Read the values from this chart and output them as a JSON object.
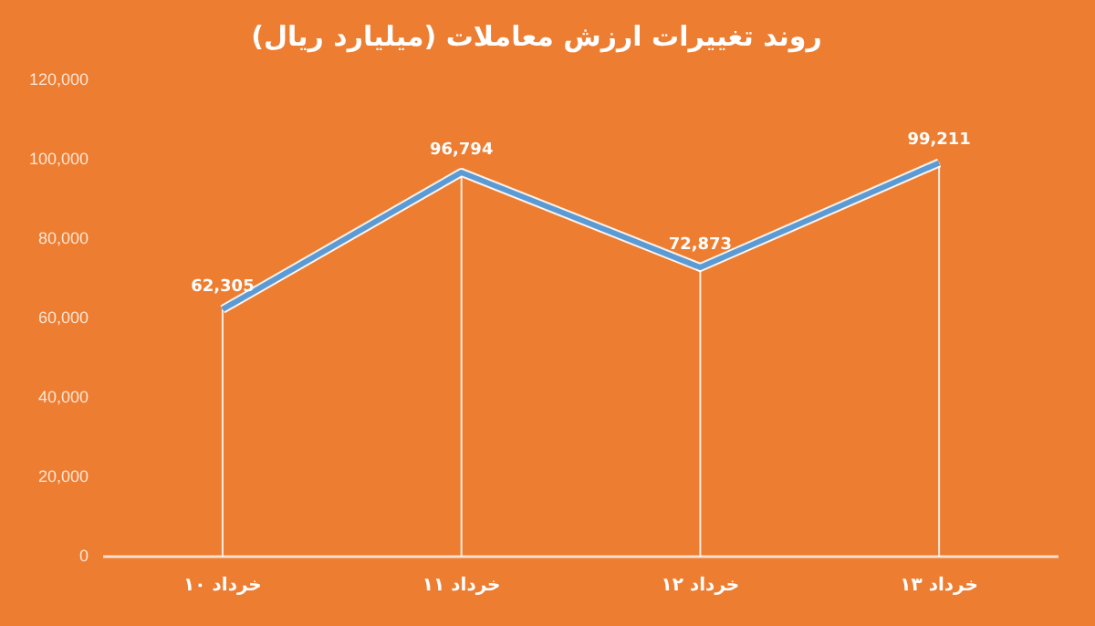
{
  "chart_data": {
    "type": "line",
    "title": "روند تغییرات ارزش معاملات (میلیارد ریال)",
    "categories": [
      "۱۰ خرداد",
      "۱۱ خرداد",
      "۱۲ خرداد",
      "۱۳ خرداد"
    ],
    "series": [
      {
        "color": "#5b9bd5",
        "values": [
          62305,
          96794,
          72873,
          99211
        ],
        "value_labels": [
          "62,305",
          "96,794",
          "72,873",
          "99,211"
        ]
      }
    ],
    "ylim": [
      0,
      120000
    ],
    "yticks": [
      {
        "value": 0,
        "label": "0"
      },
      {
        "value": 20000,
        "label": "20,000"
      },
      {
        "value": 40000,
        "label": "40,000"
      },
      {
        "value": 60000,
        "label": "60,000"
      },
      {
        "value": 80000,
        "label": "80,000"
      },
      {
        "value": 100000,
        "label": "100,000"
      },
      {
        "value": 120000,
        "label": "120,000"
      }
    ],
    "grid": "x",
    "legend": false,
    "marker": "none",
    "line_style": "solid"
  }
}
